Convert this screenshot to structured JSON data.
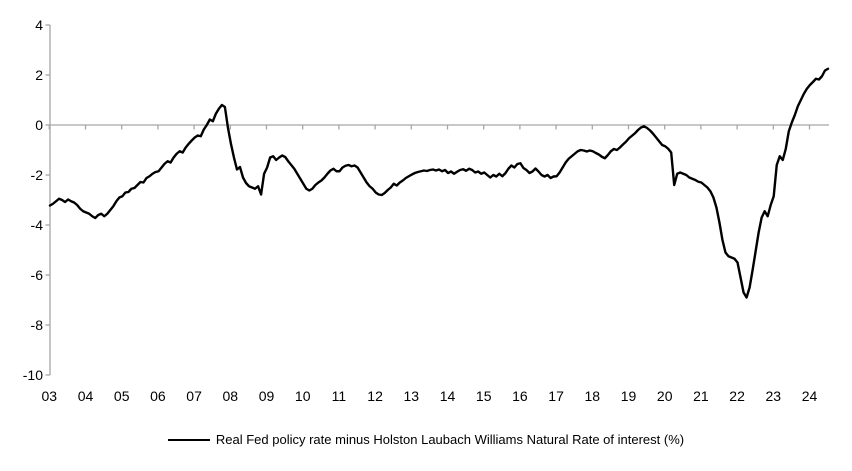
{
  "chart_data": {
    "type": "line",
    "title": "",
    "legend_label": "Real Fed policy rate minus Holston Laubach Williams Natural Rate of interest (%)",
    "legend_position": "bottom-center",
    "line_color": "#000000",
    "axis_color": "#A6A6A6",
    "grid": false,
    "y_axis": {
      "ticks": [
        4,
        2,
        0,
        -2,
        -4,
        -6,
        -8,
        -10
      ],
      "range": [
        -10,
        4
      ]
    },
    "x_axis": {
      "tick_labels": [
        "03",
        "04",
        "05",
        "06",
        "07",
        "08",
        "09",
        "10",
        "11",
        "12",
        "13",
        "14",
        "15",
        "16",
        "17",
        "18",
        "19",
        "20",
        "21",
        "22",
        "23",
        "24"
      ],
      "range_years": [
        2003.0,
        2024.58
      ]
    },
    "series": [
      {
        "name": "Real Fed policy rate minus Holston Laubach Williams Natural Rate of interest (%)",
        "color": "#000000",
        "frequency": "monthly",
        "x_start": "2003-01",
        "x_end": "2024-07",
        "values": [
          -3.22,
          -3.15,
          -3.05,
          -2.95,
          -3.0,
          -3.08,
          -2.98,
          -3.05,
          -3.1,
          -3.2,
          -3.35,
          -3.45,
          -3.5,
          -3.55,
          -3.65,
          -3.72,
          -3.6,
          -3.55,
          -3.65,
          -3.55,
          -3.4,
          -3.25,
          -3.05,
          -2.9,
          -2.85,
          -2.7,
          -2.68,
          -2.55,
          -2.52,
          -2.4,
          -2.28,
          -2.3,
          -2.12,
          -2.05,
          -1.95,
          -1.88,
          -1.85,
          -1.7,
          -1.55,
          -1.45,
          -1.5,
          -1.3,
          -1.15,
          -1.05,
          -1.1,
          -0.9,
          -0.75,
          -0.62,
          -0.5,
          -0.42,
          -0.45,
          -0.18,
          0.0,
          0.22,
          0.15,
          0.45,
          0.65,
          0.8,
          0.72,
          -0.1,
          -0.75,
          -1.3,
          -1.78,
          -1.68,
          -2.1,
          -2.32,
          -2.45,
          -2.5,
          -2.55,
          -2.45,
          -2.78,
          -1.95,
          -1.7,
          -1.3,
          -1.25,
          -1.4,
          -1.3,
          -1.22,
          -1.28,
          -1.45,
          -1.6,
          -1.75,
          -1.95,
          -2.15,
          -2.35,
          -2.55,
          -2.62,
          -2.55,
          -2.4,
          -2.3,
          -2.22,
          -2.1,
          -1.95,
          -1.82,
          -1.75,
          -1.85,
          -1.85,
          -1.7,
          -1.63,
          -1.6,
          -1.65,
          -1.62,
          -1.7,
          -1.9,
          -2.1,
          -2.3,
          -2.45,
          -2.55,
          -2.7,
          -2.78,
          -2.8,
          -2.72,
          -2.6,
          -2.5,
          -2.35,
          -2.42,
          -2.3,
          -2.22,
          -2.12,
          -2.05,
          -1.98,
          -1.92,
          -1.88,
          -1.85,
          -1.82,
          -1.84,
          -1.8,
          -1.78,
          -1.82,
          -1.78,
          -1.85,
          -1.8,
          -1.92,
          -1.86,
          -1.95,
          -1.87,
          -1.8,
          -1.77,
          -1.83,
          -1.75,
          -1.8,
          -1.9,
          -1.86,
          -1.95,
          -1.9,
          -2.0,
          -2.1,
          -2.0,
          -2.06,
          -1.95,
          -2.05,
          -1.93,
          -1.75,
          -1.62,
          -1.7,
          -1.56,
          -1.53,
          -1.72,
          -1.8,
          -1.92,
          -1.86,
          -1.74,
          -1.86,
          -2.0,
          -2.06,
          -2.0,
          -2.12,
          -2.06,
          -2.05,
          -1.9,
          -1.7,
          -1.5,
          -1.35,
          -1.25,
          -1.15,
          -1.05,
          -1.0,
          -1.02,
          -1.06,
          -1.02,
          -1.05,
          -1.12,
          -1.18,
          -1.27,
          -1.33,
          -1.2,
          -1.05,
          -0.96,
          -1.0,
          -0.9,
          -0.78,
          -0.67,
          -0.53,
          -0.43,
          -0.33,
          -0.2,
          -0.1,
          -0.05,
          -0.12,
          -0.22,
          -0.35,
          -0.5,
          -0.65,
          -0.8,
          -0.85,
          -0.95,
          -1.1,
          -2.4,
          -1.95,
          -1.9,
          -1.95,
          -2.0,
          -2.1,
          -2.15,
          -2.2,
          -2.27,
          -2.3,
          -2.4,
          -2.5,
          -2.65,
          -2.9,
          -3.3,
          -3.9,
          -4.6,
          -5.1,
          -5.25,
          -5.3,
          -5.35,
          -5.5,
          -6.1,
          -6.7,
          -6.9,
          -6.5,
          -5.8,
          -5.05,
          -4.3,
          -3.7,
          -3.45,
          -3.65,
          -3.2,
          -2.85,
          -1.6,
          -1.25,
          -1.4,
          -0.95,
          -0.25,
          0.1,
          0.4,
          0.75,
          1.0,
          1.25,
          1.45,
          1.6,
          1.72,
          1.85,
          1.82,
          1.95,
          2.18,
          2.25
        ]
      }
    ]
  }
}
